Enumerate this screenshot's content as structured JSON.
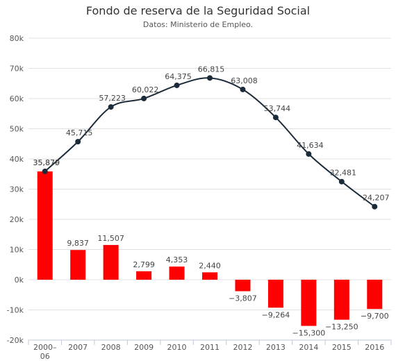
{
  "chart_data": {
    "type": "bar",
    "title": "Fondo de reserva de la Seguridad Social",
    "subtitle": "Datos: Ministerio de Empleo.",
    "categories": [
      "2000-06",
      "2007",
      "2008",
      "2009",
      "2010",
      "2011",
      "2012",
      "2013",
      "2014",
      "2015",
      "2016"
    ],
    "category_labels": [
      [
        "2000–",
        "06"
      ],
      [
        "2007"
      ],
      [
        "2008"
      ],
      [
        "2009"
      ],
      [
        "2010"
      ],
      [
        "2011"
      ],
      [
        "2012"
      ],
      [
        "2013"
      ],
      [
        "2014"
      ],
      [
        "2015"
      ],
      [
        "2016"
      ]
    ],
    "series": [
      {
        "type": "column",
        "color": "#ff0000",
        "values": [
          35870,
          9837,
          11507,
          2799,
          4353,
          2440,
          -3807,
          -9264,
          -15300,
          -13250,
          -9700
        ],
        "labels": [
          "35,870",
          "9,837",
          "11,507",
          "2,799",
          "4,353",
          "2,440",
          "−3,807",
          "−9,264",
          "−15,300",
          "−13,250",
          "−9,700"
        ]
      },
      {
        "type": "line",
        "color": "#1c2b3a",
        "values": [
          35879,
          45715,
          57223,
          60022,
          64375,
          66815,
          63008,
          53744,
          41634,
          32481,
          24207
        ],
        "labels": [
          "35,879",
          "45,715",
          "57,223",
          "60,022",
          "64,375",
          "66,815",
          "63,008",
          "53,744",
          "41,634",
          "32,481",
          "24,207"
        ]
      }
    ],
    "ylim": [
      -20000,
      80000
    ],
    "yticks": [
      -20000,
      -10000,
      0,
      10000,
      20000,
      30000,
      40000,
      50000,
      60000,
      70000,
      80000
    ],
    "ytick_labels": [
      "-20k",
      "-10k",
      "0k",
      "10k",
      "20k",
      "30k",
      "40k",
      "50k",
      "60k",
      "70k",
      "80k"
    ],
    "xlabel": "",
    "ylabel": "",
    "grid": true,
    "legend": "none"
  }
}
